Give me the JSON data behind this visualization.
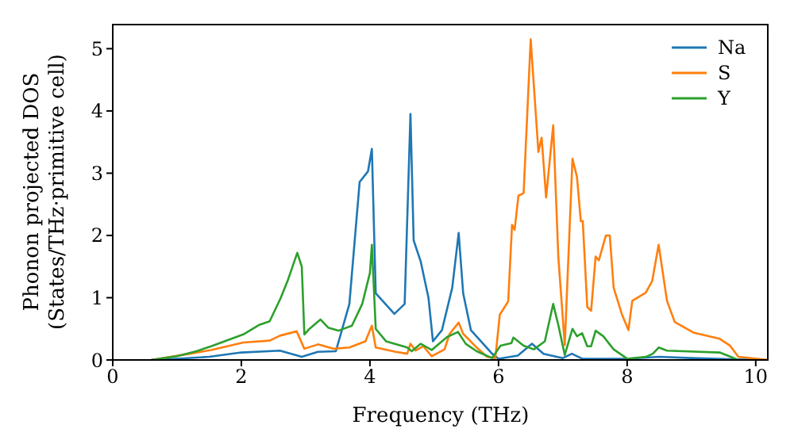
{
  "chart_data": {
    "type": "line",
    "xlabel": "Frequency (THz)",
    "ylabel": "Phonon projected DOS\n(States/THz·primitive cell)",
    "xlim": [
      0,
      10.2
    ],
    "ylim": [
      0,
      5.4
    ],
    "xticks": [
      0,
      2,
      4,
      6,
      8,
      10
    ],
    "yticks": [
      0,
      1,
      2,
      3,
      4,
      5
    ],
    "legend": "top right",
    "grid": false,
    "marker": "none",
    "line_style": "solid",
    "series": [
      {
        "name": "Na",
        "color": "#1f77b4",
        "x": [
          0.6,
          1.0,
          1.5,
          2.0,
          2.6,
          2.94,
          3.19,
          3.47,
          3.68,
          3.84,
          3.97,
          4.03,
          4.09,
          4.38,
          4.54,
          4.63,
          4.68,
          4.79,
          4.91,
          4.98,
          5.12,
          5.28,
          5.38,
          5.45,
          5.57,
          5.9,
          6.0,
          6.3,
          6.52,
          6.7,
          7.0,
          7.14,
          7.3,
          8.0,
          8.5,
          9.0,
          9.7,
          10.2
        ],
        "values": [
          0,
          0.02,
          0.05,
          0.12,
          0.15,
          0.05,
          0.13,
          0.14,
          0.9,
          2.86,
          3.03,
          3.39,
          1.07,
          0.74,
          0.9,
          3.95,
          1.92,
          1.58,
          1.0,
          0.3,
          0.48,
          1.16,
          2.04,
          1.07,
          0.48,
          0.1,
          0.02,
          0.07,
          0.26,
          0.1,
          0.03,
          0.1,
          0.02,
          0.02,
          0.05,
          0.03,
          0.01,
          0
        ]
      },
      {
        "name": "S",
        "color": "#ff7f0e",
        "x": [
          0.6,
          1.2,
          1.53,
          2.03,
          2.44,
          2.6,
          2.86,
          2.98,
          3.19,
          3.43,
          3.68,
          3.93,
          4.03,
          4.09,
          4.4,
          4.58,
          4.63,
          4.71,
          4.83,
          4.96,
          5.16,
          5.24,
          5.38,
          5.45,
          5.66,
          5.82,
          5.95,
          6.02,
          6.15,
          6.21,
          6.25,
          6.31,
          6.39,
          6.5,
          6.62,
          6.67,
          6.74,
          6.85,
          6.93,
          7.03,
          7.15,
          7.22,
          7.28,
          7.31,
          7.38,
          7.44,
          7.51,
          7.56,
          7.67,
          7.73,
          7.79,
          7.92,
          8.02,
          8.08,
          8.29,
          8.39,
          8.49,
          8.62,
          8.74,
          9.03,
          9.44,
          9.6,
          9.73,
          10.2
        ],
        "values": [
          0,
          0.1,
          0.16,
          0.28,
          0.31,
          0.39,
          0.46,
          0.18,
          0.25,
          0.18,
          0.2,
          0.3,
          0.55,
          0.2,
          0.13,
          0.1,
          0.26,
          0.15,
          0.22,
          0.06,
          0.17,
          0.42,
          0.6,
          0.42,
          0.2,
          0.05,
          0.03,
          0.73,
          0.94,
          2.17,
          2.09,
          2.64,
          2.68,
          5.15,
          3.34,
          3.57,
          2.61,
          3.77,
          1.65,
          0.24,
          3.23,
          2.94,
          2.23,
          2.23,
          0.85,
          0.79,
          1.66,
          1.6,
          2.0,
          2.0,
          1.16,
          0.73,
          0.48,
          0.95,
          1.08,
          1.27,
          1.85,
          0.95,
          0.61,
          0.44,
          0.34,
          0.23,
          0.05,
          0
        ]
      },
      {
        "name": "Y",
        "color": "#2ca02c",
        "x": [
          0.6,
          0.8,
          1.0,
          1.3,
          1.53,
          2.03,
          2.27,
          2.44,
          2.61,
          2.73,
          2.87,
          2.94,
          2.98,
          3.06,
          3.23,
          3.35,
          3.51,
          3.72,
          3.88,
          4.0,
          4.03,
          4.09,
          4.25,
          4.58,
          4.65,
          4.79,
          4.96,
          5.2,
          5.37,
          5.49,
          5.66,
          5.9,
          6.03,
          6.2,
          6.23,
          6.39,
          6.55,
          6.72,
          6.85,
          6.93,
          7.03,
          7.15,
          7.22,
          7.3,
          7.38,
          7.44,
          7.51,
          7.63,
          7.79,
          8.0,
          8.29,
          8.4,
          8.49,
          8.62,
          9.44,
          9.73
        ],
        "values": [
          0,
          0.03,
          0.06,
          0.14,
          0.22,
          0.41,
          0.56,
          0.62,
          0.99,
          1.3,
          1.72,
          1.5,
          0.41,
          0.5,
          0.65,
          0.52,
          0.47,
          0.55,
          0.9,
          1.4,
          1.85,
          0.5,
          0.3,
          0.2,
          0.14,
          0.26,
          0.16,
          0.37,
          0.45,
          0.26,
          0.14,
          0.03,
          0.23,
          0.27,
          0.36,
          0.23,
          0.17,
          0.3,
          0.9,
          0.56,
          0.08,
          0.5,
          0.38,
          0.43,
          0.22,
          0.22,
          0.47,
          0.38,
          0.17,
          0.02,
          0.05,
          0.1,
          0.2,
          0.15,
          0.12,
          0
        ]
      }
    ]
  }
}
